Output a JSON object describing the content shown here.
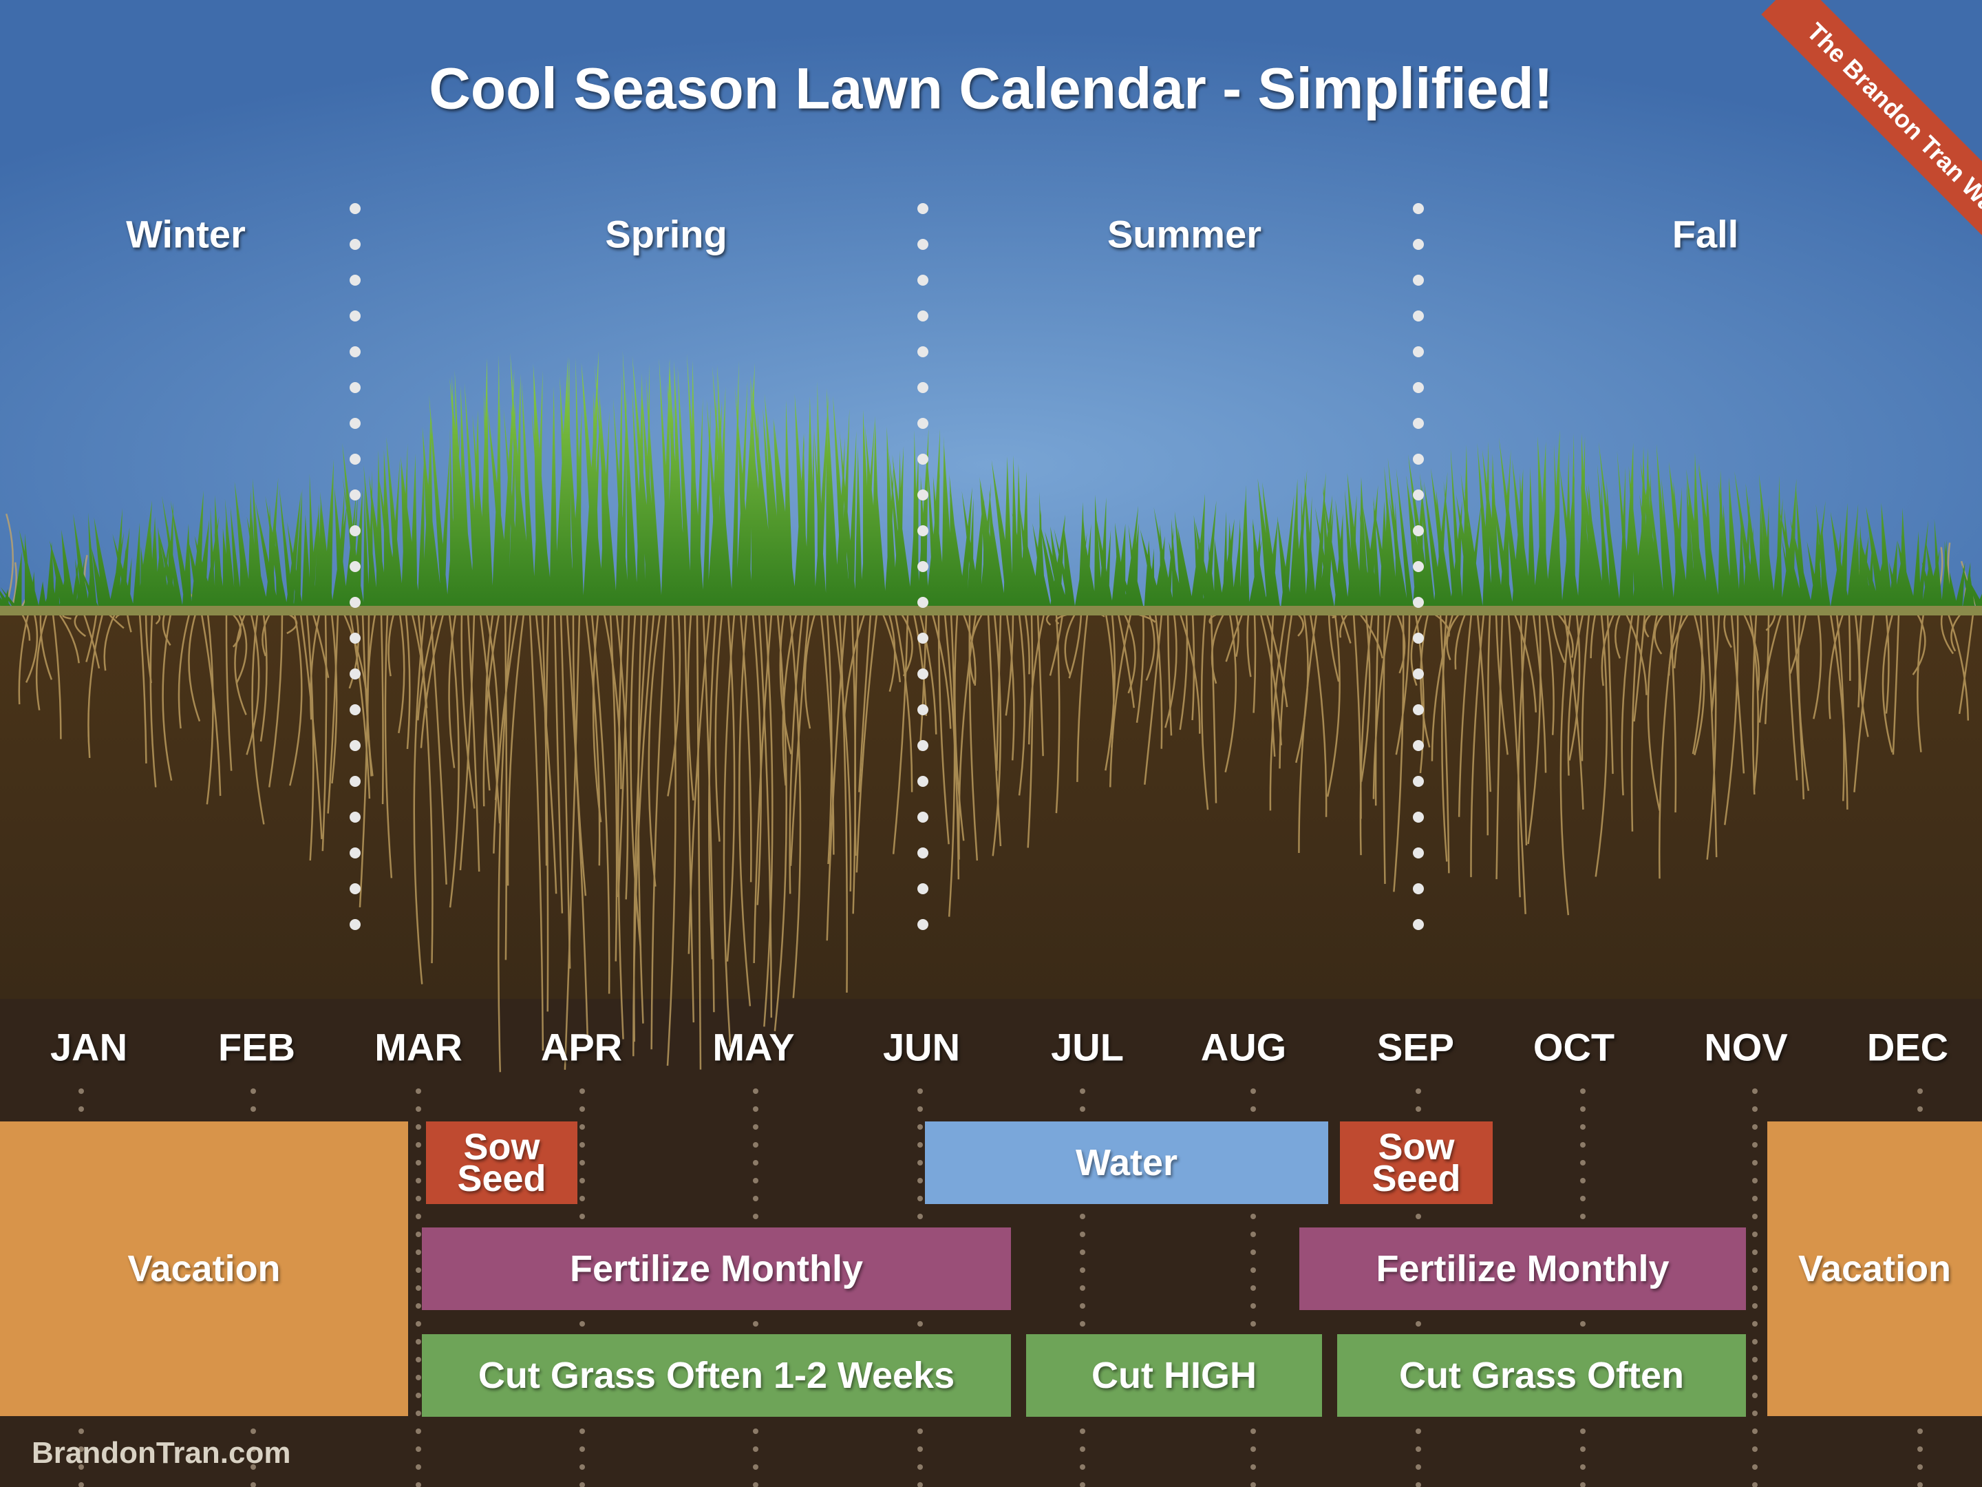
{
  "title": "Cool Season Lawn Calendar - Simplified!",
  "ribbon": "The Brandon Tran Way",
  "seasons": [
    "Winter",
    "Spring",
    "Summer",
    "Fall"
  ],
  "months": [
    "JAN",
    "FEB",
    "MAR",
    "APR",
    "MAY",
    "JUN",
    "JUL",
    "AUG",
    "SEP",
    "OCT",
    "NOV",
    "DEC"
  ],
  "tasks": [
    {
      "label": "Vacation",
      "color": "#d8944a"
    },
    {
      "label": "Sow Seed",
      "color": "#bf4a30"
    },
    {
      "label": "Water",
      "color": "#7aa7da"
    },
    {
      "label": "Sow Seed",
      "color": "#bf4a30"
    },
    {
      "label": "Fertilize Monthly",
      "color": "#9a4f78"
    },
    {
      "label": "Fertilize Monthly",
      "color": "#9a4f78"
    },
    {
      "label": "Vacation",
      "color": "#d8944a"
    },
    {
      "label": "Cut Grass Often 1-2 Weeks",
      "color": "#6ea458"
    },
    {
      "label": "Cut HIGH",
      "color": "#6ea458"
    },
    {
      "label": "Cut Grass Often",
      "color": "#6ea458"
    }
  ],
  "footer": "BrandonTran.com"
}
